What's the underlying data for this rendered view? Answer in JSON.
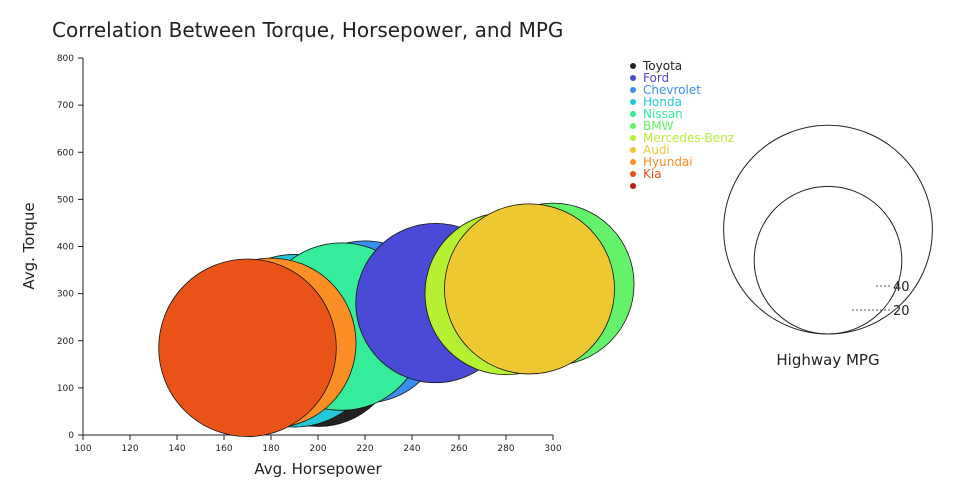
{
  "chart_data": {
    "type": "scatter",
    "title": "Correlation Between Torque, Horsepower, and MPG",
    "xlabel": "Avg. Horsepower",
    "ylabel": "Avg. Torque",
    "xlim": [
      100,
      300
    ],
    "ylim": [
      0,
      800
    ],
    "xticks": [
      "100",
      "120",
      "140",
      "160",
      "180",
      "200",
      "220",
      "240",
      "260",
      "280",
      "300"
    ],
    "yticks": [
      "0",
      "100",
      "200",
      "300",
      "400",
      "500",
      "600",
      "700",
      "800"
    ],
    "grid": false,
    "legend_position": "top-right",
    "size_legend": {
      "title": "Highway MPG",
      "entries": [
        {
          "label": "40",
          "value": 40
        },
        {
          "label": "20",
          "value": 20
        }
      ]
    },
    "points": [
      {
        "name": "Toyota",
        "x": 200,
        "y": 190,
        "mpg": 30,
        "color": "#222222",
        "label_color": "#222222"
      },
      {
        "name": "Ford",
        "x": 250,
        "y": 280,
        "mpg": 29,
        "color": "#4a4ad6",
        "label_color": "#4a4ad6"
      },
      {
        "name": "Chevrolet",
        "x": 220,
        "y": 240,
        "mpg": 30,
        "color": "#3a8ef0",
        "label_color": "#3a8ef0"
      },
      {
        "name": "Honda",
        "x": 190,
        "y": 200,
        "mpg": 34,
        "color": "#22c8d8",
        "label_color": "#22c8d8"
      },
      {
        "name": "Nissan",
        "x": 210,
        "y": 230,
        "mpg": 32,
        "color": "#34ec9a",
        "label_color": "#34ec9a"
      },
      {
        "name": "BMW",
        "x": 300,
        "y": 320,
        "mpg": 30,
        "color": "#64f26a",
        "label_color": "#64f26a"
      },
      {
        "name": "Mercedes-Benz",
        "x": 280,
        "y": 300,
        "mpg": 30,
        "color": "#b6f032",
        "label_color": "#b6f032"
      },
      {
        "name": "Audi",
        "x": 290,
        "y": 310,
        "mpg": 33,
        "color": "#eec830",
        "label_color": "#eec830"
      },
      {
        "name": "Hyundai",
        "x": 180,
        "y": 195,
        "mpg": 33,
        "color": "#fb8e24",
        "label_color": "#fb8e24"
      },
      {
        "name": "Kia",
        "x": 170,
        "y": 185,
        "mpg": 36,
        "color": "#ea5318",
        "label_color": "#ea5318"
      },
      {
        "name": "",
        "x": null,
        "y": null,
        "mpg": null,
        "color": "#b91c14",
        "label_color": "#b91c14"
      }
    ]
  }
}
